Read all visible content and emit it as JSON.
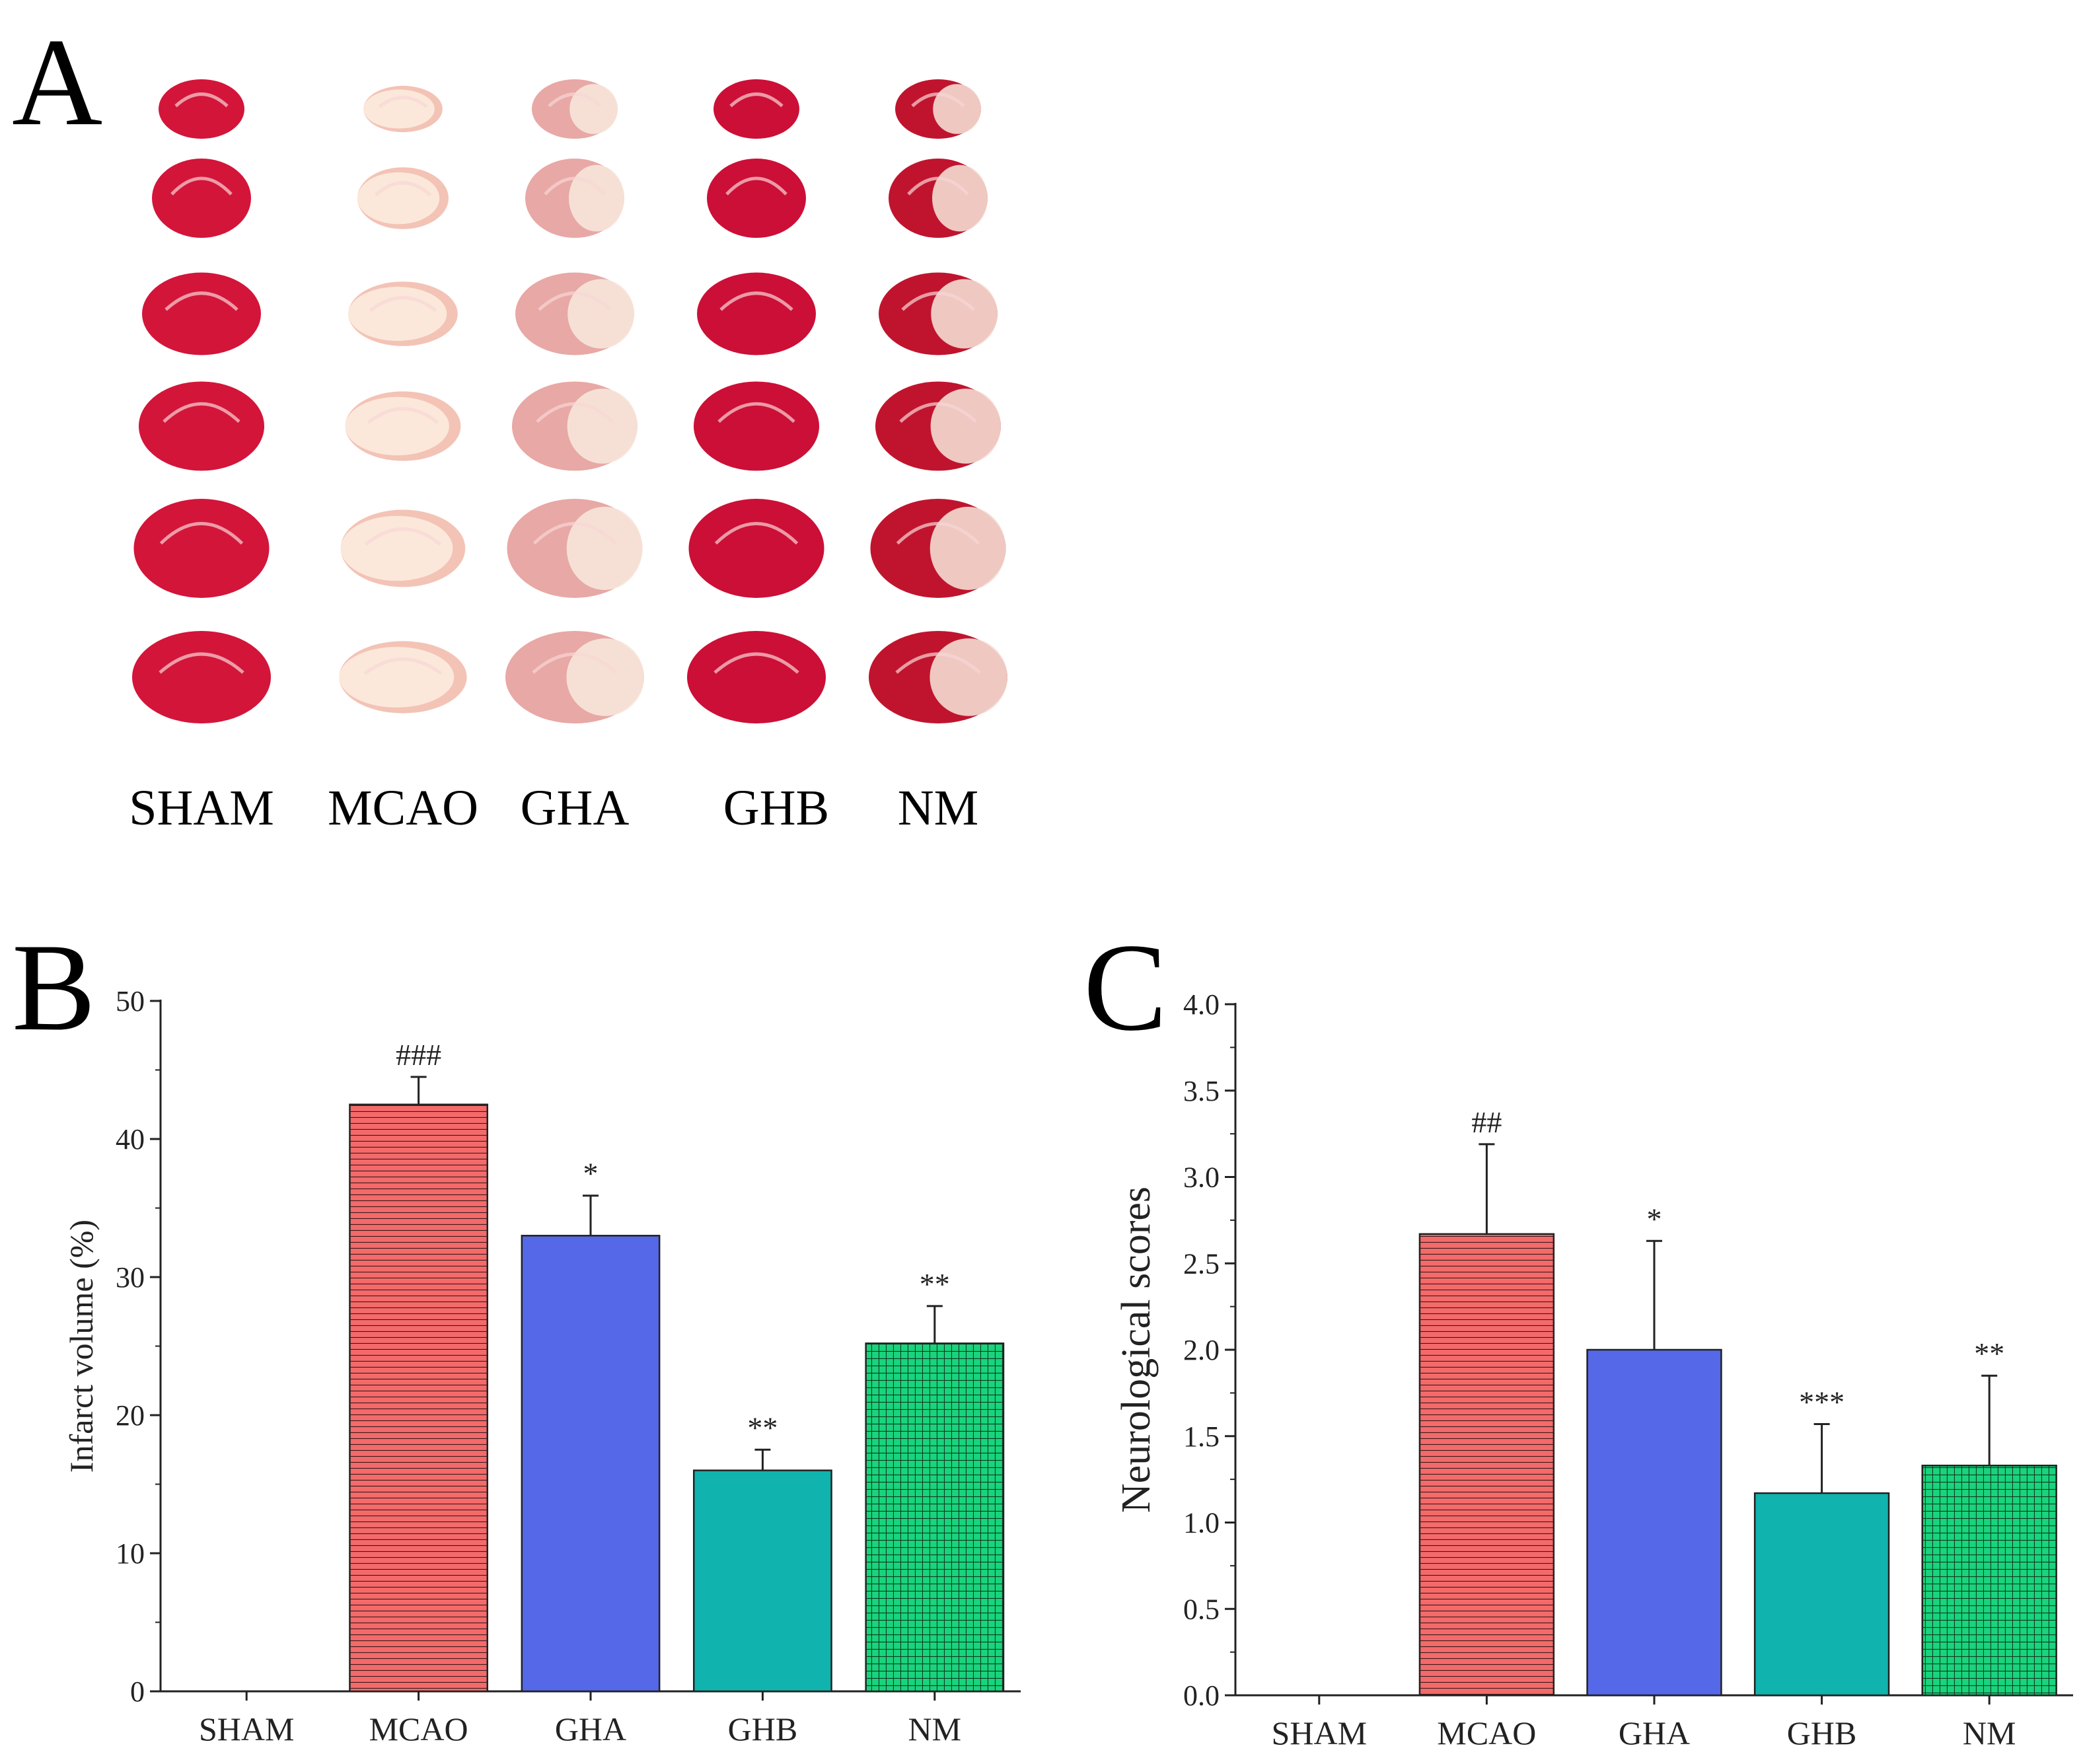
{
  "panels": {
    "a": "A",
    "b": "B",
    "c": "C"
  },
  "brain_section_rows": 6,
  "groups": [
    "SHAM",
    "MCAO",
    "GHA",
    "GHB",
    "NM"
  ],
  "group_colors": {
    "MCAO": "#f46a6a",
    "GHA": "#5468e8",
    "GHB": "#10b3ad",
    "NM": "#18d47c"
  },
  "chart_data": [
    {
      "type": "bar",
      "panel": "B",
      "categories": [
        "SHAM",
        "MCAO",
        "GHA",
        "GHB",
        "NM"
      ],
      "values": [
        0,
        42.5,
        33.0,
        16.0,
        25.2
      ],
      "errors": [
        0,
        2.0,
        2.9,
        1.5,
        2.7
      ],
      "annotations": [
        "",
        "###",
        "*",
        "**",
        "**"
      ],
      "ylabel": "Infarct volume (%)",
      "ylim": [
        0,
        50
      ],
      "yticks": [
        "0",
        "10",
        "20",
        "30",
        "40",
        "50"
      ]
    },
    {
      "type": "bar",
      "panel": "C",
      "categories": [
        "SHAM",
        "MCAO",
        "GHA",
        "GHB",
        "NM"
      ],
      "values": [
        0,
        2.67,
        2.0,
        1.17,
        1.33
      ],
      "errors": [
        0,
        0.52,
        0.63,
        0.4,
        0.52
      ],
      "annotations": [
        "",
        "##",
        "*",
        "***",
        "**"
      ],
      "ylabel": "Neurological scores",
      "ylim": [
        0,
        4.0
      ],
      "yticks": [
        "0.0",
        "0.5",
        "1.0",
        "1.5",
        "2.0",
        "2.5",
        "3.0",
        "3.5",
        "4.0"
      ]
    }
  ]
}
